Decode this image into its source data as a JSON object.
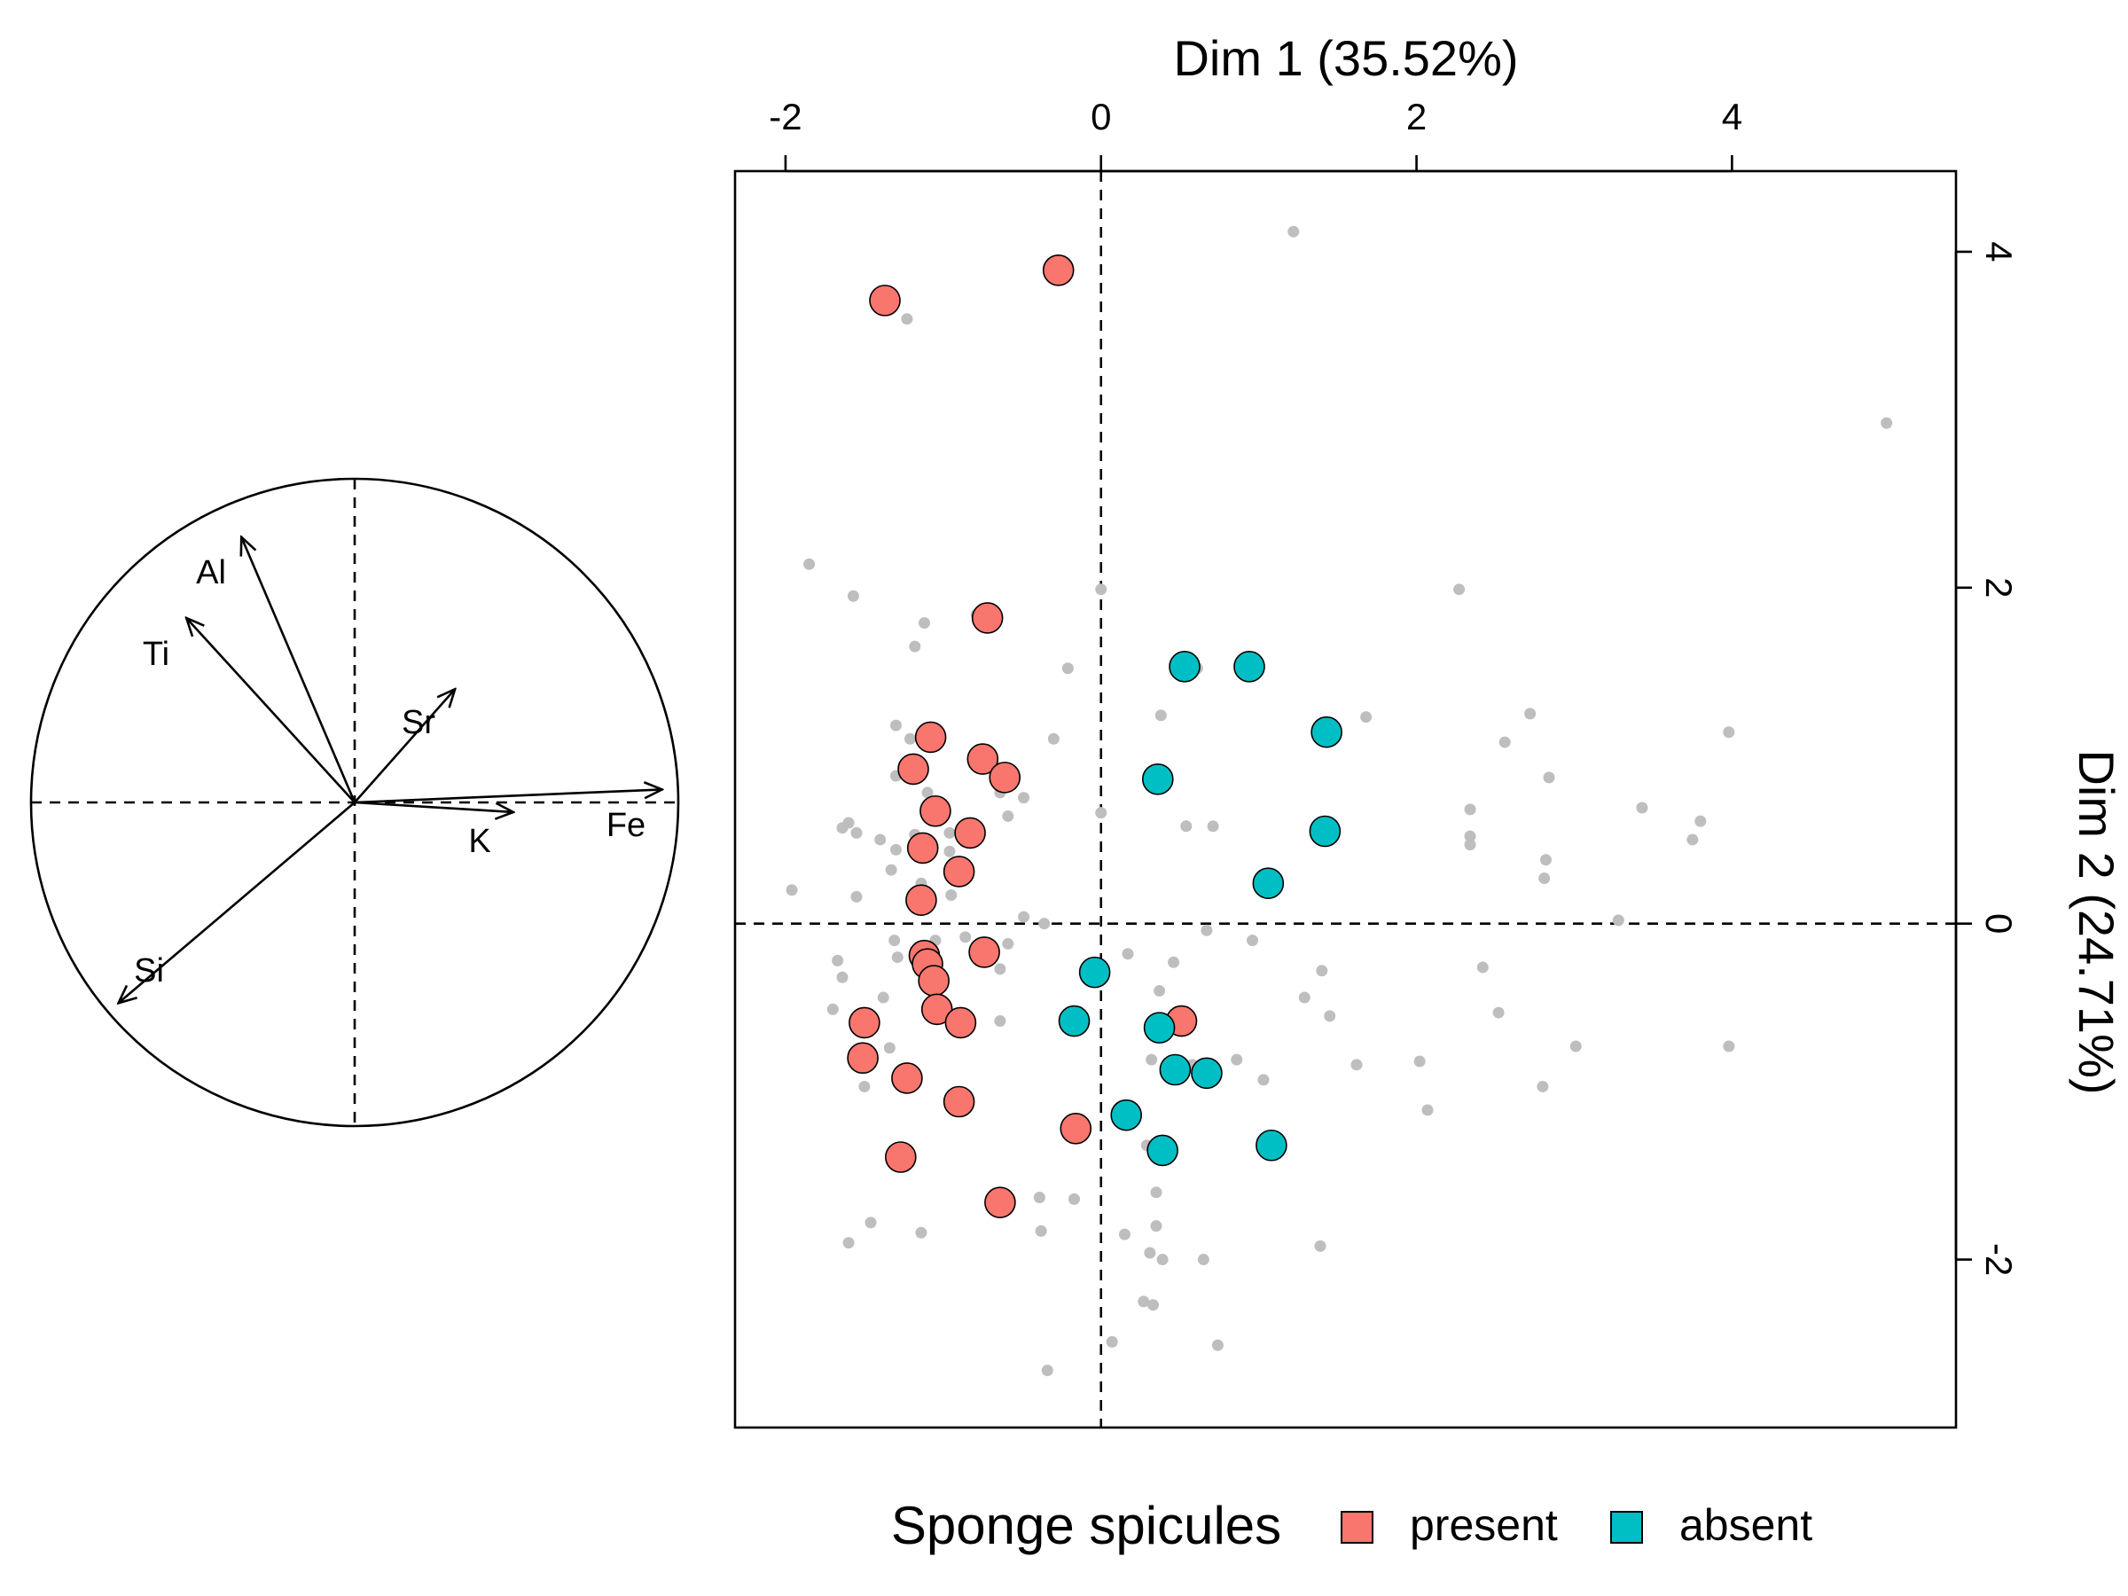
{
  "colors": {
    "present": "#F8766D",
    "absent": "#00BFC4",
    "background_points": "#BEBEBE",
    "axis": "#000000"
  },
  "chart_data": [
    {
      "type": "scatter",
      "xlabel": "Dim 1 (35.52%)",
      "ylabel": "Dim 2 (24.71%)",
      "xlim": [
        -2.32,
        5.42
      ],
      "ylim": [
        -3.0,
        4.48
      ],
      "x_ticks": [
        -2,
        0,
        2,
        4
      ],
      "y_ticks": [
        -2,
        0,
        2,
        4
      ],
      "x_axis_position": "top",
      "y_axis_position": "right",
      "reference_lines": {
        "x": 0,
        "y": 0,
        "style": "dashed"
      },
      "grid": false,
      "legend": {
        "title": "Sponge spicules",
        "position": "bottom",
        "entries": [
          "present",
          "absent"
        ]
      },
      "series": [
        {
          "name": "present",
          "points": [
            [
              -1.37,
              3.71
            ],
            [
              -0.27,
              3.89
            ],
            [
              -0.72,
              1.82
            ],
            [
              -1.08,
              1.11
            ],
            [
              -1.19,
              0.92
            ],
            [
              -0.75,
              0.98
            ],
            [
              -0.61,
              0.87
            ],
            [
              -1.05,
              0.67
            ],
            [
              -0.83,
              0.54
            ],
            [
              -1.13,
              0.45
            ],
            [
              -0.9,
              0.31
            ],
            [
              -1.14,
              0.14
            ],
            [
              -0.74,
              -0.17
            ],
            [
              -1.12,
              -0.19
            ],
            [
              -1.1,
              -0.24
            ],
            [
              -1.06,
              -0.34
            ],
            [
              -1.04,
              -0.51
            ],
            [
              -0.89,
              -0.59
            ],
            [
              -1.5,
              -0.59
            ],
            [
              -1.51,
              -0.8
            ],
            [
              -1.23,
              -0.92
            ],
            [
              -0.9,
              -1.06
            ],
            [
              -0.16,
              -1.22
            ],
            [
              -1.27,
              -1.39
            ],
            [
              -0.64,
              -1.66
            ],
            [
              0.51,
              -0.58
            ]
          ]
        },
        {
          "name": "absent",
          "points": [
            [
              0.53,
              1.53
            ],
            [
              0.94,
              1.53
            ],
            [
              1.43,
              1.14
            ],
            [
              0.36,
              0.86
            ],
            [
              1.42,
              0.55
            ],
            [
              1.06,
              0.24
            ],
            [
              -0.04,
              -0.29
            ],
            [
              -0.17,
              -0.58
            ],
            [
              0.37,
              -0.62
            ],
            [
              0.47,
              -0.87
            ],
            [
              0.67,
              -0.89
            ],
            [
              0.16,
              -1.14
            ],
            [
              0.39,
              -1.35
            ],
            [
              1.08,
              -1.32
            ]
          ]
        },
        {
          "name": "",
          "role": "supplementary",
          "points": [
            [
              1.22,
              4.12
            ],
            [
              -1.23,
              3.6
            ],
            [
              4.98,
              2.98
            ],
            [
              -1.85,
              2.14
            ],
            [
              2.27,
              1.99
            ],
            [
              -1.57,
              1.95
            ],
            [
              -0.79,
              1.84
            ],
            [
              0.0,
              1.99
            ],
            [
              -1.12,
              1.79
            ],
            [
              -1.18,
              1.65
            ],
            [
              -0.21,
              1.52
            ],
            [
              0.61,
              1.52
            ],
            [
              -1.3,
              1.18
            ],
            [
              0.38,
              1.24
            ],
            [
              1.68,
              1.23
            ],
            [
              2.72,
              1.25
            ],
            [
              2.56,
              1.08
            ],
            [
              3.98,
              1.14
            ],
            [
              -0.3,
              1.1
            ],
            [
              -1.21,
              1.1
            ],
            [
              -1.18,
              0.98
            ],
            [
              -1.3,
              0.88
            ],
            [
              -1.1,
              0.78
            ],
            [
              -0.64,
              0.78
            ],
            [
              -0.49,
              0.75
            ],
            [
              -1.0,
              0.68
            ],
            [
              -0.59,
              0.64
            ],
            [
              2.84,
              0.87
            ],
            [
              2.34,
              0.68
            ],
            [
              3.43,
              0.69
            ],
            [
              3.8,
              0.61
            ],
            [
              0.0,
              0.66
            ],
            [
              0.54,
              0.58
            ],
            [
              0.71,
              0.58
            ],
            [
              2.34,
              0.52
            ],
            [
              3.75,
              0.5
            ],
            [
              2.34,
              0.47
            ],
            [
              -1.6,
              0.6
            ],
            [
              -1.64,
              0.57
            ],
            [
              -1.55,
              0.54
            ],
            [
              -1.4,
              0.5
            ],
            [
              -1.18,
              0.53
            ],
            [
              -0.96,
              0.54
            ],
            [
              -0.96,
              0.43
            ],
            [
              -1.3,
              0.44
            ],
            [
              -1.33,
              0.32
            ],
            [
              -1.14,
              0.24
            ],
            [
              -0.95,
              0.17
            ],
            [
              2.82,
              0.38
            ],
            [
              2.81,
              0.27
            ],
            [
              -1.55,
              0.16
            ],
            [
              -1.96,
              0.2
            ],
            [
              -0.49,
              0.04
            ],
            [
              -0.36,
              0.0
            ],
            [
              0.67,
              -0.04
            ],
            [
              0.96,
              -0.1
            ],
            [
              3.28,
              0.02
            ],
            [
              -1.31,
              -0.1
            ],
            [
              -1.05,
              -0.1
            ],
            [
              -0.86,
              -0.08
            ],
            [
              -0.59,
              -0.12
            ],
            [
              -1.67,
              -0.22
            ],
            [
              -1.64,
              -0.32
            ],
            [
              -1.29,
              -0.2
            ],
            [
              -1.38,
              -0.44
            ],
            [
              -0.64,
              -0.27
            ],
            [
              0.17,
              -0.18
            ],
            [
              0.37,
              -0.4
            ],
            [
              0.46,
              -0.23
            ],
            [
              1.4,
              -0.28
            ],
            [
              1.29,
              -0.44
            ],
            [
              1.45,
              -0.55
            ],
            [
              2.42,
              -0.26
            ],
            [
              2.52,
              -0.53
            ],
            [
              -1.7,
              -0.51
            ],
            [
              -1.34,
              -0.74
            ],
            [
              -0.64,
              -0.58
            ],
            [
              0.58,
              -0.84
            ],
            [
              0.32,
              -0.81
            ],
            [
              0.86,
              -0.81
            ],
            [
              1.03,
              -0.93
            ],
            [
              1.62,
              -0.84
            ],
            [
              2.02,
              -0.82
            ],
            [
              2.07,
              -1.11
            ],
            [
              2.8,
              -0.97
            ],
            [
              3.01,
              -0.73
            ],
            [
              3.98,
              -0.73
            ],
            [
              -1.5,
              -0.83
            ],
            [
              -1.5,
              -0.97
            ],
            [
              -1.46,
              -1.78
            ],
            [
              -1.6,
              -1.9
            ],
            [
              -1.14,
              -1.84
            ],
            [
              -0.39,
              -1.63
            ],
            [
              -0.17,
              -1.64
            ],
            [
              0.35,
              -1.6
            ],
            [
              -0.38,
              -1.83
            ],
            [
              0.35,
              -1.8
            ],
            [
              0.15,
              -1.85
            ],
            [
              0.31,
              -1.96
            ],
            [
              0.39,
              -2.0
            ],
            [
              0.65,
              -2.0
            ],
            [
              1.39,
              -1.92
            ],
            [
              0.27,
              -2.25
            ],
            [
              0.33,
              -2.27
            ],
            [
              -0.34,
              -2.66
            ],
            [
              0.07,
              -2.49
            ],
            [
              0.74,
              -2.51
            ],
            [
              0.29,
              -1.32
            ]
          ]
        }
      ]
    },
    {
      "type": "diagram",
      "variables": [
        {
          "name": "Al",
          "x": -0.35,
          "y": 0.82
        },
        {
          "name": "Ti",
          "x": -0.52,
          "y": 0.57
        },
        {
          "name": "Sr",
          "x": 0.31,
          "y": 0.35
        },
        {
          "name": "K",
          "x": 0.49,
          "y": -0.03
        },
        {
          "name": "Fe",
          "x": 0.95,
          "y": 0.04
        },
        {
          "name": "Si",
          "x": -0.73,
          "y": -0.62
        }
      ]
    }
  ]
}
